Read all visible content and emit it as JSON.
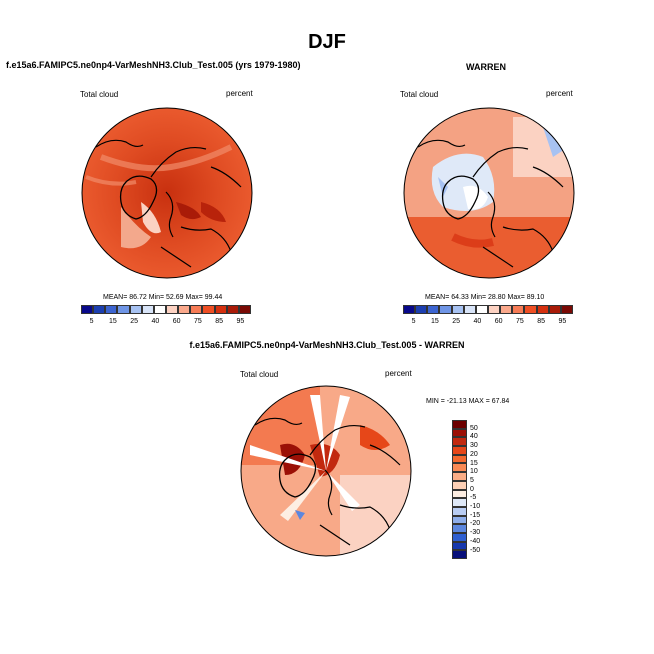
{
  "title": "DJF",
  "panels": [
    {
      "title": "f.e15a6.FAMIPC5.ne0np4-VarMeshNH3.Club_Test.005 (yrs 1979-1980)",
      "left_label": "Total cloud",
      "right_label": "percent",
      "stats": "MEAN=  86.72  Min=  52.69  Max=  99.44"
    },
    {
      "title": "WARREN",
      "left_label": "Total cloud",
      "right_label": "percent",
      "stats": "MEAN=  64.33  Min=  28.80  Max=  89.10"
    },
    {
      "title": "f.e15a6.FAMIPC5.ne0np4-VarMeshNH3.Club_Test.005 - WARREN",
      "left_label": "Total cloud",
      "right_label": "percent",
      "stats": "MIN = -21.13 MAX =  67.84"
    }
  ],
  "colorbar": {
    "labels": [
      "5",
      "15",
      "25",
      "40",
      "60",
      "75",
      "85",
      "95"
    ],
    "colors": [
      "#08088a",
      "#1c3fb0",
      "#3c64d0",
      "#6f95e6",
      "#a7c2f2",
      "#d8e4f8",
      "#ffffff",
      "#fdd2c2",
      "#fba98c",
      "#f77c56",
      "#ef4f24",
      "#d5300f",
      "#a91b08",
      "#7a0a05"
    ]
  },
  "diff_colorbar": {
    "labels": [
      "50",
      "40",
      "30",
      "20",
      "15",
      "10",
      "5",
      "0",
      "-5",
      "-10",
      "-15",
      "-20",
      "-30",
      "-40",
      "-50"
    ],
    "colors": [
      "#6c0000",
      "#9b1006",
      "#c2290f",
      "#e64719",
      "#f3692f",
      "#f98a55",
      "#fbad86",
      "#fdd0b6",
      "#fdeee3",
      "#dfe9f8",
      "#b9cdf3",
      "#8eaeeb",
      "#5c87df",
      "#2f5fd0",
      "#1738ae",
      "#08107a"
    ]
  }
}
